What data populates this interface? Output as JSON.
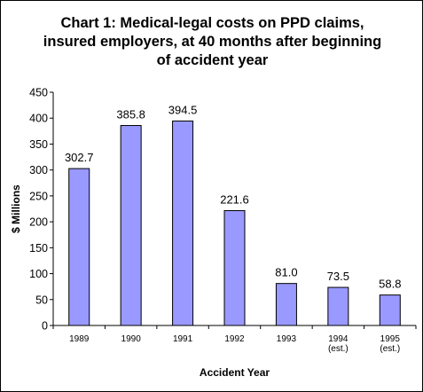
{
  "chart_data": {
    "type": "bar",
    "title_lines": [
      "Chart 1: Medical-legal costs on PPD claims,",
      "insured employers, at 40 months after beginning",
      "of accident year"
    ],
    "categories": [
      [
        "1989"
      ],
      [
        "1990"
      ],
      [
        "1991"
      ],
      [
        "1992"
      ],
      [
        "1993"
      ],
      [
        "1994",
        "(est.)"
      ],
      [
        "1995",
        "(est.)"
      ]
    ],
    "values": [
      302.7,
      385.8,
      394.5,
      221.6,
      81.0,
      73.5,
      58.8
    ],
    "data_labels": [
      "302.7",
      "385.8",
      "394.5",
      "221.6",
      "81.0",
      "73.5",
      "58.8"
    ],
    "xlabel": "Accident Year",
    "ylabel": "$ Millions",
    "ylim": [
      0,
      450
    ],
    "yticks": [
      0,
      50,
      100,
      150,
      200,
      250,
      300,
      350,
      400,
      450
    ],
    "grid": false,
    "bar_color": "#9999ff",
    "bar_edge_color": "#000000"
  }
}
